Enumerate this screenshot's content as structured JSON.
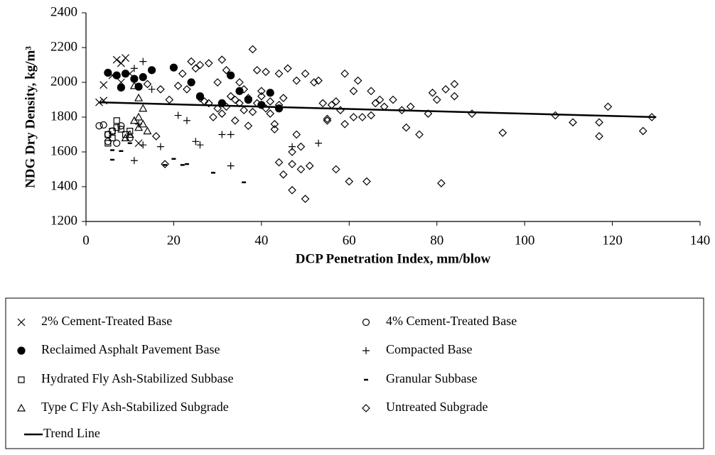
{
  "chart_data": {
    "type": "scatter",
    "x_label": "DCP Penetration Index, mm/blow",
    "y_label": "NDG Dry Density, kg/m³",
    "xlim": [
      0,
      140
    ],
    "xticks": [
      0,
      20,
      40,
      60,
      80,
      100,
      120,
      140
    ],
    "ylim": [
      1200,
      2400
    ],
    "yticks": [
      1200,
      1400,
      1600,
      1800,
      2000,
      2200,
      2400
    ],
    "grid": false,
    "series": [
      {
        "name": "2% Cement-Treated Base",
        "marker": "x",
        "color": "#000000",
        "x": [
          3,
          4,
          4,
          7,
          8,
          9,
          10,
          8,
          6,
          12
        ],
        "values": [
          1885,
          1985,
          1895,
          2130,
          2110,
          2140,
          2050,
          2000,
          2040,
          1650
        ]
      },
      {
        "name": "4% Cement-Treated Base",
        "marker": "circle-open",
        "color": "#000000",
        "x": [
          3,
          4,
          5,
          6,
          7,
          5,
          8,
          10
        ],
        "values": [
          1750,
          1755,
          1700,
          1720,
          1650,
          1660,
          1750,
          1680
        ]
      },
      {
        "name": "Reclaimed Asphalt Pavement Base",
        "marker": "circle-filled",
        "color": "#000000",
        "x": [
          5,
          7,
          9,
          11,
          13,
          15,
          20,
          24,
          26,
          31,
          35,
          40,
          44,
          12,
          8,
          33,
          37,
          42
        ],
        "values": [
          2055,
          2040,
          2050,
          2020,
          2030,
          2070,
          2085,
          2000,
          1920,
          1880,
          1950,
          1870,
          1850,
          1975,
          1970,
          2040,
          1900,
          1940
        ]
      },
      {
        "name": "Compacted Base",
        "marker": "plus",
        "color": "#000000",
        "x": [
          11,
          13,
          11,
          13,
          17,
          21,
          23,
          25,
          26,
          31,
          33,
          33,
          47,
          53,
          15,
          12
        ],
        "values": [
          1550,
          1640,
          2080,
          2120,
          1630,
          1810,
          1780,
          1660,
          1640,
          1700,
          1700,
          1520,
          1630,
          1650,
          1960,
          1760
        ]
      },
      {
        "name": "Hydrated Fly Ash-Stabilized Subbase",
        "marker": "square-open",
        "color": "#000000",
        "x": [
          5,
          6,
          7,
          6,
          8,
          9,
          5,
          7,
          10
        ],
        "values": [
          1700,
          1680,
          1780,
          1720,
          1730,
          1700,
          1650,
          1740,
          1720
        ]
      },
      {
        "name": "Granular Subbase",
        "marker": "dash",
        "color": "#000000",
        "x": [
          6,
          8,
          10,
          18,
          20,
          22,
          23,
          29,
          36,
          6
        ],
        "values": [
          1555,
          1605,
          1650,
          1525,
          1560,
          1525,
          1530,
          1480,
          1425,
          1610
        ]
      },
      {
        "name": "Type C Fly Ash-Stabilized Subgrade",
        "marker": "triangle-open",
        "color": "#000000",
        "x": [
          10,
          11,
          12,
          13,
          12,
          13,
          14,
          12,
          11,
          9
        ],
        "values": [
          1700,
          1780,
          1800,
          1850,
          1910,
          1760,
          1720,
          1740,
          1980,
          1680
        ]
      },
      {
        "name": "Untreated Subgrade",
        "marker": "diamond-open",
        "color": "#000000",
        "x": [
          14,
          16,
          17,
          18,
          19,
          21,
          22,
          23,
          24,
          25,
          26,
          27,
          28,
          29,
          30,
          31,
          32,
          33,
          34,
          35,
          36,
          37,
          38,
          39,
          40,
          41,
          42,
          43,
          44,
          44,
          45,
          46,
          47,
          47,
          48,
          48,
          49,
          49,
          50,
          50,
          51,
          52,
          53,
          54,
          55,
          56,
          57,
          58,
          59,
          59,
          60,
          61,
          62,
          63,
          64,
          65,
          66,
          67,
          68,
          70,
          72,
          73,
          74,
          76,
          78,
          79,
          80,
          81,
          82,
          84,
          84,
          88,
          95,
          107,
          111,
          117,
          117,
          119,
          127,
          129,
          55,
          57,
          61,
          65,
          45,
          47,
          43,
          39,
          36,
          30,
          26,
          28,
          32,
          34,
          38,
          40,
          42,
          44,
          31,
          35,
          37,
          41
        ],
        "values": [
          1990,
          1690,
          1960,
          1530,
          1900,
          1980,
          2050,
          1960,
          2120,
          2080,
          2100,
          1890,
          2110,
          1800,
          1850,
          2130,
          2070,
          1920,
          1780,
          2000,
          1840,
          1750,
          2190,
          2070,
          1950,
          2060,
          1820,
          1730,
          2050,
          1540,
          1910,
          2080,
          1600,
          1380,
          2010,
          1700,
          1630,
          1500,
          1330,
          2050,
          1520,
          2000,
          2010,
          1880,
          1780,
          1870,
          1500,
          1840,
          2050,
          1760,
          1430,
          1950,
          2010,
          1800,
          1430,
          1950,
          1880,
          1900,
          1860,
          1900,
          1840,
          1740,
          1860,
          1700,
          1820,
          1940,
          1900,
          1420,
          1960,
          1990,
          1920,
          1820,
          1710,
          1810,
          1770,
          1770,
          1690,
          1860,
          1720,
          1800,
          1790,
          1890,
          1800,
          1810,
          1470,
          1530,
          1760,
          1880,
          1960,
          2000,
          1910,
          1880,
          1860,
          1900,
          1830,
          1920,
          1890,
          1870,
          1820,
          1880,
          1910,
          1850
        ]
      },
      {
        "name": "Trend Line",
        "marker": "line",
        "color": "#000000",
        "x": [
          3,
          130
        ],
        "values": [
          1885,
          1800
        ]
      }
    ]
  }
}
